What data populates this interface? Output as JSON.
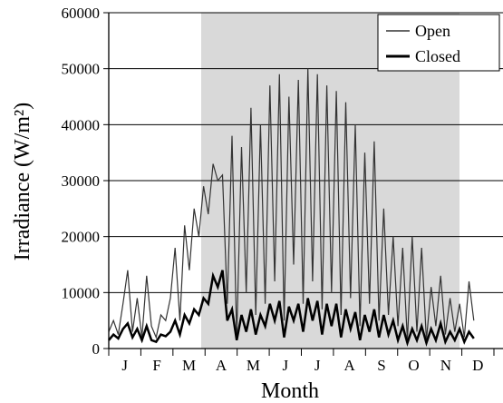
{
  "chart_data": {
    "type": "line",
    "title": "",
    "xlabel": "Month",
    "ylabel": "Irradiance (W/m²)",
    "ylim": [
      0,
      60000
    ],
    "yticks": [
      0,
      10000,
      20000,
      30000,
      40000,
      50000,
      60000
    ],
    "month_labels": [
      "J",
      "F",
      "M",
      "A",
      "M",
      "J",
      "J",
      "A",
      "S",
      "O",
      "N",
      "D"
    ],
    "grid": "horizontal",
    "legend_position": "top-right",
    "shaded_region": {
      "start_month": "April",
      "end_month": "mid-November"
    },
    "series": [
      {
        "name": "Open",
        "color": "#333333",
        "points": [
          [
            0,
            3000
          ],
          [
            0.2,
            5000
          ],
          [
            0.4,
            2500
          ],
          [
            0.6,
            8000
          ],
          [
            0.8,
            14000
          ],
          [
            1.0,
            3000
          ],
          [
            1.2,
            9000
          ],
          [
            1.4,
            2000
          ],
          [
            1.6,
            13000
          ],
          [
            1.8,
            4000
          ],
          [
            2.0,
            2000
          ],
          [
            2.2,
            6000
          ],
          [
            2.4,
            5000
          ],
          [
            2.6,
            9000
          ],
          [
            2.8,
            18000
          ],
          [
            3.0,
            5000
          ],
          [
            3.2,
            22000
          ],
          [
            3.4,
            14000
          ],
          [
            3.6,
            25000
          ],
          [
            3.8,
            20000
          ],
          [
            4.0,
            29000
          ],
          [
            4.2,
            24000
          ],
          [
            4.4,
            33000
          ],
          [
            4.6,
            30000
          ],
          [
            4.8,
            31000
          ],
          [
            5.0,
            8000
          ],
          [
            5.2,
            38000
          ],
          [
            5.4,
            2000
          ],
          [
            5.6,
            36000
          ],
          [
            5.8,
            10000
          ],
          [
            6.0,
            43000
          ],
          [
            6.2,
            6000
          ],
          [
            6.4,
            40000
          ],
          [
            6.6,
            8000
          ],
          [
            6.8,
            47000
          ],
          [
            7.0,
            12000
          ],
          [
            7.2,
            49000
          ],
          [
            7.4,
            5000
          ],
          [
            7.6,
            45000
          ],
          [
            7.8,
            15000
          ],
          [
            8.0,
            48000
          ],
          [
            8.2,
            8000
          ],
          [
            8.4,
            50000
          ],
          [
            8.6,
            12000
          ],
          [
            8.8,
            49000
          ],
          [
            9.0,
            7000
          ],
          [
            9.2,
            47000
          ],
          [
            9.4,
            10000
          ],
          [
            9.6,
            46000
          ],
          [
            9.8,
            6000
          ],
          [
            10.0,
            44000
          ],
          [
            10.2,
            9000
          ],
          [
            10.4,
            40000
          ],
          [
            10.6,
            4000
          ],
          [
            10.8,
            35000
          ],
          [
            11.0,
            8000
          ],
          [
            11.2,
            37000
          ],
          [
            11.4,
            5000
          ],
          [
            11.6,
            25000
          ],
          [
            11.8,
            6000
          ],
          [
            12.0,
            20000
          ],
          [
            12.2,
            4000
          ],
          [
            12.4,
            18000
          ],
          [
            12.6,
            1500
          ],
          [
            12.8,
            20000
          ],
          [
            13.0,
            3000
          ],
          [
            13.2,
            18000
          ],
          [
            13.4,
            1500
          ],
          [
            13.6,
            11000
          ],
          [
            13.8,
            4000
          ],
          [
            14.0,
            13000
          ],
          [
            14.2,
            2500
          ],
          [
            14.4,
            9000
          ],
          [
            14.6,
            3000
          ],
          [
            14.8,
            8000
          ],
          [
            15.0,
            2000
          ],
          [
            15.2,
            12000
          ],
          [
            15.4,
            5000
          ]
        ]
      },
      {
        "name": "Closed",
        "color": "#000000",
        "points": [
          [
            0,
            1500
          ],
          [
            0.2,
            2500
          ],
          [
            0.4,
            1800
          ],
          [
            0.6,
            3500
          ],
          [
            0.8,
            4500
          ],
          [
            1.0,
            2000
          ],
          [
            1.2,
            3500
          ],
          [
            1.4,
            1500
          ],
          [
            1.6,
            4000
          ],
          [
            1.8,
            1500
          ],
          [
            2.0,
            1200
          ],
          [
            2.2,
            2500
          ],
          [
            2.4,
            2200
          ],
          [
            2.6,
            3000
          ],
          [
            2.8,
            5000
          ],
          [
            3.0,
            2500
          ],
          [
            3.2,
            6000
          ],
          [
            3.4,
            4500
          ],
          [
            3.6,
            7000
          ],
          [
            3.8,
            6000
          ],
          [
            4.0,
            9000
          ],
          [
            4.2,
            8000
          ],
          [
            4.4,
            13000
          ],
          [
            4.6,
            11000
          ],
          [
            4.8,
            14000
          ],
          [
            5.0,
            5000
          ],
          [
            5.2,
            7000
          ],
          [
            5.4,
            1500
          ],
          [
            5.6,
            6000
          ],
          [
            5.8,
            3000
          ],
          [
            6.0,
            7000
          ],
          [
            6.2,
            2500
          ],
          [
            6.4,
            6000
          ],
          [
            6.6,
            4000
          ],
          [
            6.8,
            8000
          ],
          [
            7.0,
            5000
          ],
          [
            7.2,
            8500
          ],
          [
            7.4,
            2000
          ],
          [
            7.6,
            7500
          ],
          [
            7.8,
            5000
          ],
          [
            8.0,
            8000
          ],
          [
            8.2,
            3000
          ],
          [
            8.4,
            9000
          ],
          [
            8.6,
            5000
          ],
          [
            8.8,
            8500
          ],
          [
            9.0,
            2500
          ],
          [
            9.2,
            8000
          ],
          [
            9.4,
            4000
          ],
          [
            9.6,
            8000
          ],
          [
            9.8,
            2000
          ],
          [
            10.0,
            7000
          ],
          [
            10.2,
            3500
          ],
          [
            10.4,
            6500
          ],
          [
            10.6,
            1500
          ],
          [
            10.8,
            6000
          ],
          [
            11.0,
            3000
          ],
          [
            11.2,
            7000
          ],
          [
            11.4,
            2000
          ],
          [
            11.6,
            6000
          ],
          [
            11.8,
            2500
          ],
          [
            12.0,
            5000
          ],
          [
            12.2,
            1500
          ],
          [
            12.4,
            4000
          ],
          [
            12.6,
            1000
          ],
          [
            12.8,
            3500
          ],
          [
            13.0,
            1500
          ],
          [
            13.2,
            4000
          ],
          [
            13.4,
            1000
          ],
          [
            13.6,
            3500
          ],
          [
            13.8,
            1500
          ],
          [
            14.0,
            4500
          ],
          [
            14.2,
            1200
          ],
          [
            14.4,
            3000
          ],
          [
            14.6,
            1500
          ],
          [
            14.8,
            3500
          ],
          [
            15.0,
            1200
          ],
          [
            15.2,
            3000
          ],
          [
            15.4,
            1800
          ]
        ]
      }
    ]
  }
}
